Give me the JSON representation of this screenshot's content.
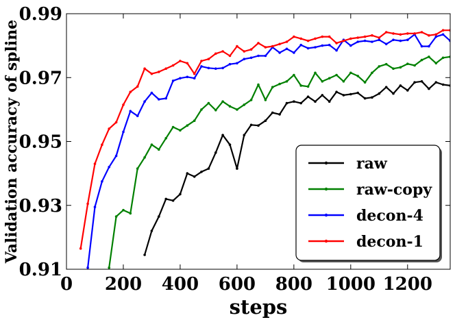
{
  "chart_data": {
    "type": "line",
    "title": "",
    "xlabel": "steps",
    "ylabel": "Validation accuracy of spline",
    "xlim": [
      0,
      1350
    ],
    "ylim": [
      0.91,
      0.99
    ],
    "xticks": [
      0,
      200,
      400,
      600,
      800,
      1000,
      1200
    ],
    "xtick_labels": [
      "0",
      "200",
      "400",
      "600",
      "800",
      "1000",
      "1200"
    ],
    "yticks": [
      0.91,
      0.93,
      0.95,
      0.97,
      0.99
    ],
    "ytick_labels": [
      "0.91",
      "0.93",
      "0.95",
      "0.97",
      "0.99"
    ],
    "grid": false,
    "legend_position": "lower-right",
    "x": [
      50,
      75,
      100,
      125,
      150,
      175,
      200,
      225,
      250,
      275,
      300,
      325,
      350,
      375,
      400,
      425,
      450,
      475,
      500,
      525,
      550,
      575,
      600,
      625,
      650,
      675,
      700,
      725,
      750,
      775,
      800,
      825,
      850,
      875,
      900,
      925,
      950,
      975,
      1000,
      1025,
      1050,
      1075,
      1100,
      1125,
      1150,
      1175,
      1200,
      1225,
      1250,
      1275,
      1300,
      1325,
      1350
    ],
    "series": [
      {
        "name": "raw",
        "color": "#000000",
        "values": [
          null,
          null,
          null,
          null,
          null,
          null,
          null,
          null,
          null,
          0.9145,
          0.922,
          0.9265,
          0.932,
          0.9315,
          0.9335,
          0.94,
          0.939,
          0.9405,
          0.9415,
          0.9465,
          0.952,
          0.949,
          0.9415,
          0.952,
          0.9552,
          0.955,
          0.9565,
          0.959,
          0.9585,
          0.962,
          0.9625,
          0.962,
          0.964,
          0.9625,
          0.9645,
          0.9625,
          0.9655,
          0.9645,
          0.9648,
          0.9652,
          0.9635,
          0.9638,
          0.965,
          0.967,
          0.965,
          0.9675,
          0.966,
          0.9685,
          0.9688,
          0.9665,
          0.9685,
          0.9678,
          0.9675
        ]
      },
      {
        "name": "raw-copy",
        "color": "#008000",
        "values": [
          null,
          null,
          null,
          null,
          0.9105,
          0.9265,
          0.9285,
          0.9275,
          0.9415,
          0.945,
          0.949,
          0.9475,
          0.951,
          0.9545,
          0.9535,
          0.955,
          0.9565,
          0.96,
          0.962,
          0.9598,
          0.9625,
          0.961,
          0.96,
          0.9615,
          0.963,
          0.9678,
          0.963,
          0.967,
          0.968,
          0.9688,
          0.9708,
          0.9675,
          0.9672,
          0.9715,
          0.9688,
          0.9698,
          0.9708,
          0.9688,
          0.9715,
          0.9705,
          0.9685,
          0.9715,
          0.9735,
          0.9742,
          0.9728,
          0.9732,
          0.9743,
          0.9738,
          0.9755,
          0.9765,
          0.9745,
          0.9762,
          0.9765
        ]
      },
      {
        "name": "decon-4",
        "color": "#0000ff",
        "values": [
          null,
          0.9105,
          0.9295,
          0.9375,
          0.942,
          0.9455,
          0.953,
          0.9595,
          0.958,
          0.9625,
          0.9652,
          0.9632,
          0.9635,
          0.969,
          0.9698,
          0.9702,
          0.9698,
          0.9735,
          0.973,
          0.9728,
          0.973,
          0.9742,
          0.9745,
          0.9758,
          0.9762,
          0.9768,
          0.9768,
          0.9795,
          0.9778,
          0.979,
          0.9778,
          0.9802,
          0.9792,
          0.9795,
          0.98,
          0.9802,
          0.9785,
          0.9818,
          0.98,
          0.9812,
          0.9815,
          0.9812,
          0.9818,
          0.9805,
          0.9818,
          0.9815,
          0.9818,
          0.9835,
          0.9798,
          0.9798,
          0.9828,
          0.9835,
          0.9815
        ]
      },
      {
        "name": "decon-1",
        "color": "#ff0000",
        "values": [
          0.9165,
          0.9305,
          0.943,
          0.949,
          0.954,
          0.956,
          0.9615,
          0.9655,
          0.9672,
          0.9728,
          0.9712,
          0.9718,
          0.9728,
          0.9738,
          0.9752,
          0.9745,
          0.9712,
          0.9752,
          0.9758,
          0.9775,
          0.9782,
          0.9768,
          0.9798,
          0.9782,
          0.9788,
          0.9808,
          0.9795,
          0.9798,
          0.9805,
          0.9812,
          0.9828,
          0.9822,
          0.9815,
          0.9822,
          0.9828,
          0.9828,
          0.9808,
          0.9815,
          0.9822,
          0.9825,
          0.9828,
          0.9832,
          0.9825,
          0.9842,
          0.9838,
          0.9835,
          0.9838,
          0.9838,
          0.9842,
          0.9832,
          0.9835,
          0.9848,
          0.9848
        ]
      }
    ]
  }
}
